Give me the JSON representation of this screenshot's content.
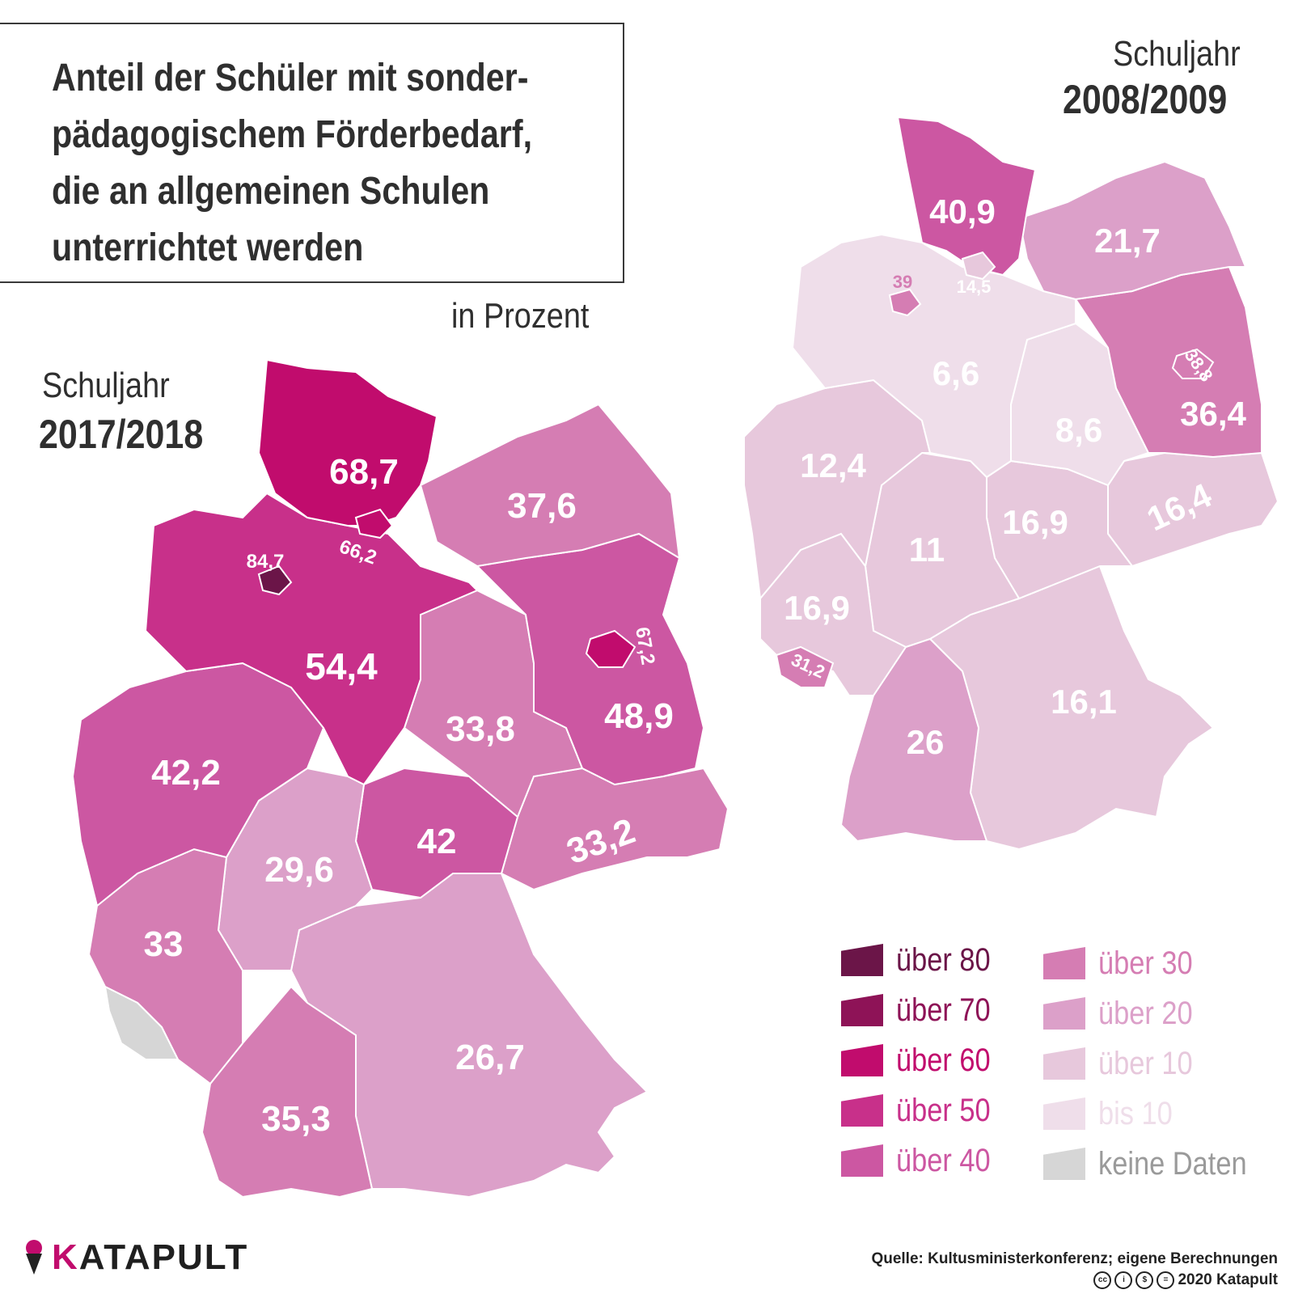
{
  "title": {
    "lines": [
      "Anteil der Schüler mit sonder-",
      "pädagogischem Förderbedarf,",
      "die an allgemeinen Schulen",
      "unterrichtet werden"
    ]
  },
  "unit": "in Prozent",
  "maps": {
    "current": {
      "label": "Schuljahr",
      "year": "2017/2018",
      "regions": [
        {
          "name": "Schleswig-Holstein",
          "value": "68,7",
          "color": "#c10c6d"
        },
        {
          "name": "Mecklenburg-Vorpommern",
          "value": "37,6",
          "color": "#d57db3"
        },
        {
          "name": "Hamburg",
          "value": "66,2",
          "color": "#c10c6d"
        },
        {
          "name": "Bremen",
          "value": "84,7",
          "color": "#6b1548"
        },
        {
          "name": "Niedersachsen",
          "value": "54,4",
          "color": "#c8308a"
        },
        {
          "name": "Berlin",
          "value": "67,2",
          "color": "#c10c6d"
        },
        {
          "name": "Brandenburg",
          "value": "48,9",
          "color": "#cc57a2"
        },
        {
          "name": "Sachsen-Anhalt",
          "value": "33,8",
          "color": "#d57db3"
        },
        {
          "name": "Nordrhein-Westfalen",
          "value": "42,2",
          "color": "#cc57a2"
        },
        {
          "name": "Thüringen",
          "value": "42",
          "color": "#cc57a2"
        },
        {
          "name": "Sachsen",
          "value": "33,2",
          "color": "#d57db3"
        },
        {
          "name": "Hessen",
          "value": "29,6",
          "color": "#dca0c9"
        },
        {
          "name": "Rheinland-Pfalz",
          "value": "33",
          "color": "#d57db3"
        },
        {
          "name": "Saarland",
          "value": "",
          "color": "#d6d6d6"
        },
        {
          "name": "Baden-Württemberg",
          "value": "35,3",
          "color": "#d57db3"
        },
        {
          "name": "Bayern",
          "value": "26,7",
          "color": "#dca0c9"
        }
      ]
    },
    "past": {
      "label": "Schuljahr",
      "year": "2008/2009",
      "regions": [
        {
          "name": "Schleswig-Holstein",
          "value": "40,9",
          "color": "#cc57a2"
        },
        {
          "name": "Mecklenburg-Vorpommern",
          "value": "21,7",
          "color": "#dca0c9"
        },
        {
          "name": "Hamburg",
          "value": "14,5",
          "color": "#e7c8dc"
        },
        {
          "name": "Bremen",
          "value": "39",
          "color": "#d57db3"
        },
        {
          "name": "Niedersachsen",
          "value": "6,6",
          "color": "#efdeea"
        },
        {
          "name": "Berlin",
          "value": "38,8",
          "color": "#d57db3"
        },
        {
          "name": "Brandenburg",
          "value": "36,4",
          "color": "#d57db3"
        },
        {
          "name": "Sachsen-Anhalt",
          "value": "8,6",
          "color": "#efdeea"
        },
        {
          "name": "Nordrhein-Westfalen",
          "value": "12,4",
          "color": "#e7c8dc"
        },
        {
          "name": "Thüringen",
          "value": "16,9",
          "color": "#e7c8dc"
        },
        {
          "name": "Sachsen",
          "value": "16,4",
          "color": "#e7c8dc"
        },
        {
          "name": "Hessen",
          "value": "11",
          "color": "#e7c8dc"
        },
        {
          "name": "Rheinland-Pfalz",
          "value": "16,9",
          "color": "#e7c8dc"
        },
        {
          "name": "Saarland",
          "value": "31,2",
          "color": "#d57db3"
        },
        {
          "name": "Baden-Württemberg",
          "value": "26",
          "color": "#dca0c9"
        },
        {
          "name": "Bayern",
          "value": "16,1",
          "color": "#e7c8dc"
        }
      ]
    }
  },
  "legend": {
    "items": [
      {
        "label": "über 80",
        "color": "#6b1548",
        "text_color": "#6b1548"
      },
      {
        "label": "über 70",
        "color": "#8e1357",
        "text_color": "#8e1357"
      },
      {
        "label": "über 60",
        "color": "#c10c6d",
        "text_color": "#c10c6d"
      },
      {
        "label": "über 50",
        "color": "#c8308a",
        "text_color": "#c8308a"
      },
      {
        "label": "über 40",
        "color": "#cc57a2",
        "text_color": "#cc57a2"
      },
      {
        "label": "über 30",
        "color": "#d57db3",
        "text_color": "#d57db3"
      },
      {
        "label": "über 20",
        "color": "#dca0c9",
        "text_color": "#dca0c9"
      },
      {
        "label": "über 10",
        "color": "#e7c8dc",
        "text_color": "#e7c8dc"
      },
      {
        "label": "bis 10",
        "color": "#efdeea",
        "text_color": "#efdeea"
      },
      {
        "label": "keine Daten",
        "color": "#d6d6d6",
        "text_color": "#9a9a9a"
      }
    ]
  },
  "brand": {
    "initial": "K",
    "rest": "ATAPULT",
    "icon": "ice-cream-cone-icon",
    "brand_color": "#c10c6d"
  },
  "source": "Quelle: Kultusministerkonferenz; eigene Berechnungen",
  "copyright": {
    "license_icons": [
      "cc-icon",
      "by-icon",
      "nc-icon",
      "nd-icon"
    ],
    "text": "2020 Katapult"
  }
}
